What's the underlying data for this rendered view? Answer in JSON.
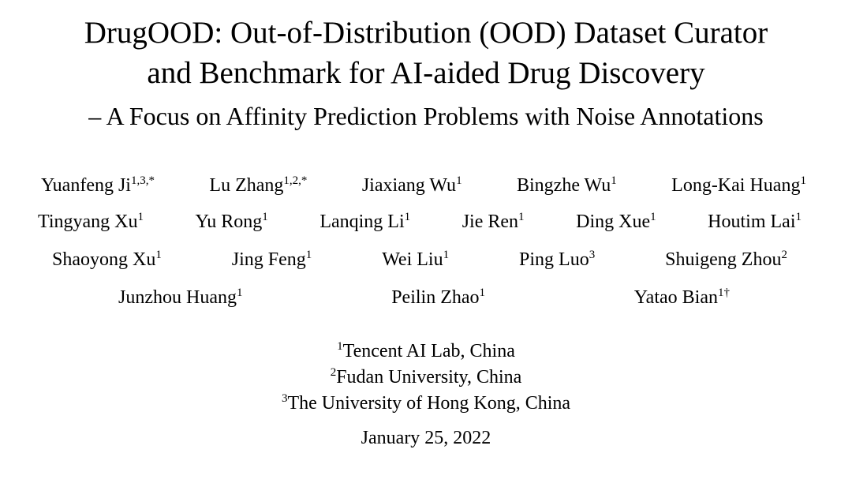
{
  "title": {
    "line1": "DrugOOD: Out-of-Distribution (OOD) Dataset Curator",
    "line2": "and Benchmark for AI-aided Drug Discovery",
    "subtitle": "– A Focus on Affinity Prediction Problems with Noise Annotations"
  },
  "authors": [
    {
      "name": "Yuanfeng Ji",
      "marks": "1,3,*"
    },
    {
      "name": "Lu Zhang",
      "marks": "1,2,*"
    },
    {
      "name": "Jiaxiang Wu",
      "marks": "1"
    },
    {
      "name": "Bingzhe Wu",
      "marks": "1"
    },
    {
      "name": "Long-Kai Huang",
      "marks": "1"
    },
    {
      "name": "Tingyang Xu",
      "marks": "1"
    },
    {
      "name": "Yu Rong",
      "marks": "1"
    },
    {
      "name": "Lanqing Li",
      "marks": "1"
    },
    {
      "name": "Jie Ren",
      "marks": "1"
    },
    {
      "name": "Ding Xue",
      "marks": "1"
    },
    {
      "name": "Houtim Lai",
      "marks": "1"
    },
    {
      "name": "Shaoyong Xu",
      "marks": "1"
    },
    {
      "name": "Jing Feng",
      "marks": "1"
    },
    {
      "name": "Wei Liu",
      "marks": "1"
    },
    {
      "name": "Ping Luo",
      "marks": "3"
    },
    {
      "name": "Shuigeng Zhou",
      "marks": "2"
    },
    {
      "name": "Junzhou Huang",
      "marks": "1"
    },
    {
      "name": "Peilin Zhao",
      "marks": "1"
    },
    {
      "name": "Yatao Bian",
      "marks": "1†"
    }
  ],
  "affiliations": [
    {
      "mark": "1",
      "text": "Tencent AI Lab, China"
    },
    {
      "mark": "2",
      "text": "Fudan University, China"
    },
    {
      "mark": "3",
      "text": "The University of Hong Kong, China"
    }
  ],
  "date": "January 25, 2022"
}
